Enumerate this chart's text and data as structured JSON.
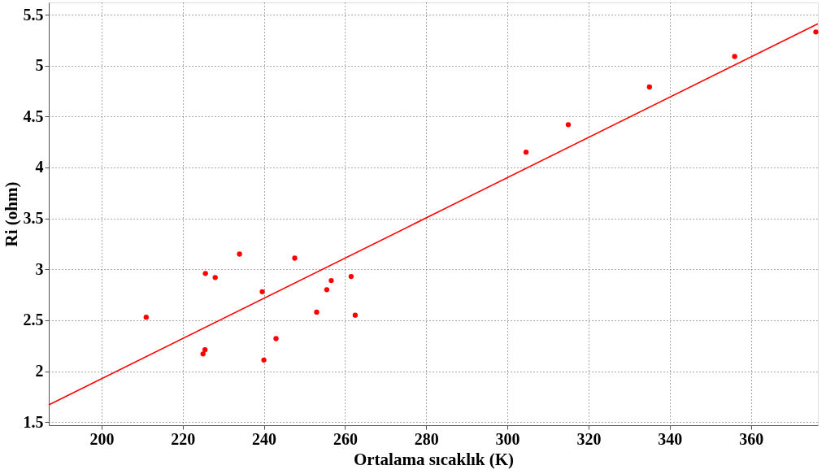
{
  "chart_data": {
    "type": "scatter",
    "xlabel": "Ortalama sıcaklık (K)",
    "ylabel": "Ri (ohm)",
    "xlim": [
      187,
      376.5
    ],
    "ylim": [
      1.47,
      5.62
    ],
    "xticks": [
      200,
      220,
      240,
      260,
      280,
      300,
      320,
      340,
      360
    ],
    "yticks": [
      1.5,
      2,
      2.5,
      3,
      3.5,
      4,
      4.5,
      5,
      5.5
    ],
    "grid": true,
    "marker": "circle",
    "series": [
      {
        "type": "scatter",
        "color": "#ff0000",
        "x": [
          211.0,
          225.6,
          228.0,
          234.0,
          247.6,
          239.6,
          225.5,
          225.0,
          240.0,
          243.0,
          253.0,
          255.5,
          256.6,
          261.5,
          262.5,
          304.6,
          315.0,
          335.0,
          356.0,
          376.0
        ],
        "values": [
          2.53,
          2.96,
          2.92,
          3.15,
          3.11,
          2.78,
          2.21,
          2.17,
          2.11,
          2.32,
          2.58,
          2.8,
          2.89,
          2.93,
          2.55,
          4.15,
          4.42,
          4.79,
          5.09,
          5.33
        ]
      },
      {
        "type": "line",
        "color": "#ff0000",
        "line_style": "solid",
        "marker": "none",
        "x": [
          187,
          376.5
        ],
        "values": [
          1.67,
          5.41
        ]
      }
    ]
  }
}
